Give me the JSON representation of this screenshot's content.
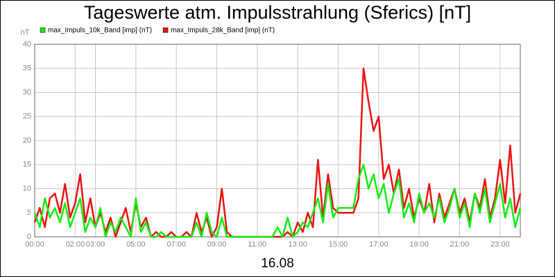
{
  "chart_data": {
    "type": "line",
    "title": "Tageswerte atm. Impulsstrahlung (Sferics) [nT]",
    "y_label": "nT",
    "x_label": "16.08",
    "x": [
      0,
      0.25,
      0.5,
      0.75,
      1,
      1.25,
      1.5,
      1.75,
      2,
      2.25,
      2.5,
      2.75,
      3,
      3.25,
      3.5,
      3.75,
      4,
      4.25,
      4.5,
      4.75,
      5,
      5.25,
      5.5,
      5.75,
      6,
      6.25,
      6.5,
      6.75,
      7,
      7.25,
      7.5,
      7.75,
      8,
      8.25,
      8.5,
      8.75,
      9,
      9.25,
      9.5,
      9.75,
      10,
      10.25,
      10.5,
      10.75,
      11,
      11.25,
      11.5,
      11.75,
      12,
      12.25,
      12.5,
      12.75,
      13,
      13.25,
      13.5,
      13.75,
      14,
      14.25,
      14.5,
      14.75,
      15,
      15.25,
      15.5,
      15.75,
      16,
      16.25,
      16.5,
      16.75,
      17,
      17.25,
      17.5,
      17.75,
      18,
      18.25,
      18.5,
      18.75,
      19,
      19.25,
      19.5,
      19.75,
      20,
      20.25,
      20.5,
      20.75,
      21,
      21.25,
      21.5,
      21.75,
      22,
      22.25,
      22.5,
      22.75,
      23,
      23.25,
      23.5,
      23.75,
      24
    ],
    "series": [
      {
        "name": "max_Impuls_28k_Band [imp] (nT)",
        "color": "#ee1111",
        "values": [
          3,
          6,
          2,
          8,
          9,
          5,
          11,
          4,
          7,
          13,
          3,
          8,
          2,
          5,
          1,
          4,
          0,
          3,
          6,
          1,
          7,
          2,
          4,
          0,
          1,
          0,
          0,
          1,
          0,
          0,
          1,
          0,
          5,
          1,
          4,
          0,
          2,
          10,
          1,
          0,
          0,
          0,
          0,
          0,
          0,
          0,
          0,
          0,
          0,
          0,
          1,
          0,
          3,
          1,
          5,
          2,
          16,
          4,
          13,
          6,
          5,
          5,
          5,
          5,
          8,
          35,
          28,
          22,
          25,
          12,
          15,
          9,
          14,
          6,
          10,
          4,
          8,
          5,
          11,
          3,
          9,
          4,
          7,
          10,
          5,
          8,
          3,
          9,
          6,
          12,
          4,
          8,
          16,
          7,
          19,
          5,
          9
        ]
      },
      {
        "name": "max_Impuls_10k_Band [imp] (nT)",
        "color": "#11ee11",
        "values": [
          5,
          2,
          8,
          4,
          6,
          3,
          7,
          2,
          5,
          8,
          1,
          4,
          2,
          6,
          0,
          3,
          1,
          4,
          2,
          0,
          8,
          1,
          3,
          0,
          0,
          1,
          0,
          0,
          0,
          0,
          0,
          0,
          3,
          0,
          5,
          1,
          0,
          4,
          0,
          0,
          0,
          0,
          0,
          0,
          0,
          0,
          0,
          0,
          2,
          0,
          4,
          0,
          1,
          3,
          2,
          5,
          8,
          3,
          11,
          4,
          6,
          6,
          6,
          6,
          12,
          15,
          10,
          13,
          8,
          11,
          5,
          9,
          12,
          4,
          7,
          3,
          9,
          5,
          7,
          4,
          8,
          3,
          6,
          10,
          4,
          7,
          2,
          9,
          5,
          10,
          3,
          7,
          11,
          4,
          8,
          2,
          6
        ]
      }
    ],
    "legend_order": [
      1,
      0
    ],
    "xlim": [
      0,
      24
    ],
    "xticks": [
      {
        "value": 0,
        "label": "00:00"
      },
      {
        "value": 2,
        "label": "02:00"
      },
      {
        "value": 3,
        "label": "03:00"
      },
      {
        "value": 5,
        "label": "05:00"
      },
      {
        "value": 7,
        "label": "07:00"
      },
      {
        "value": 9,
        "label": "09:00"
      },
      {
        "value": 11,
        "label": "11:00"
      },
      {
        "value": 13,
        "label": "13:00"
      },
      {
        "value": 15,
        "label": "15:00"
      },
      {
        "value": 17,
        "label": "17:00"
      },
      {
        "value": 19,
        "label": "19:00"
      },
      {
        "value": 21,
        "label": "21:00"
      },
      {
        "value": 23,
        "label": "23:00"
      }
    ],
    "ylim": [
      0,
      40
    ],
    "yticks": [
      0,
      5,
      10,
      15,
      20,
      25,
      30,
      35,
      40
    ],
    "grid": true
  }
}
